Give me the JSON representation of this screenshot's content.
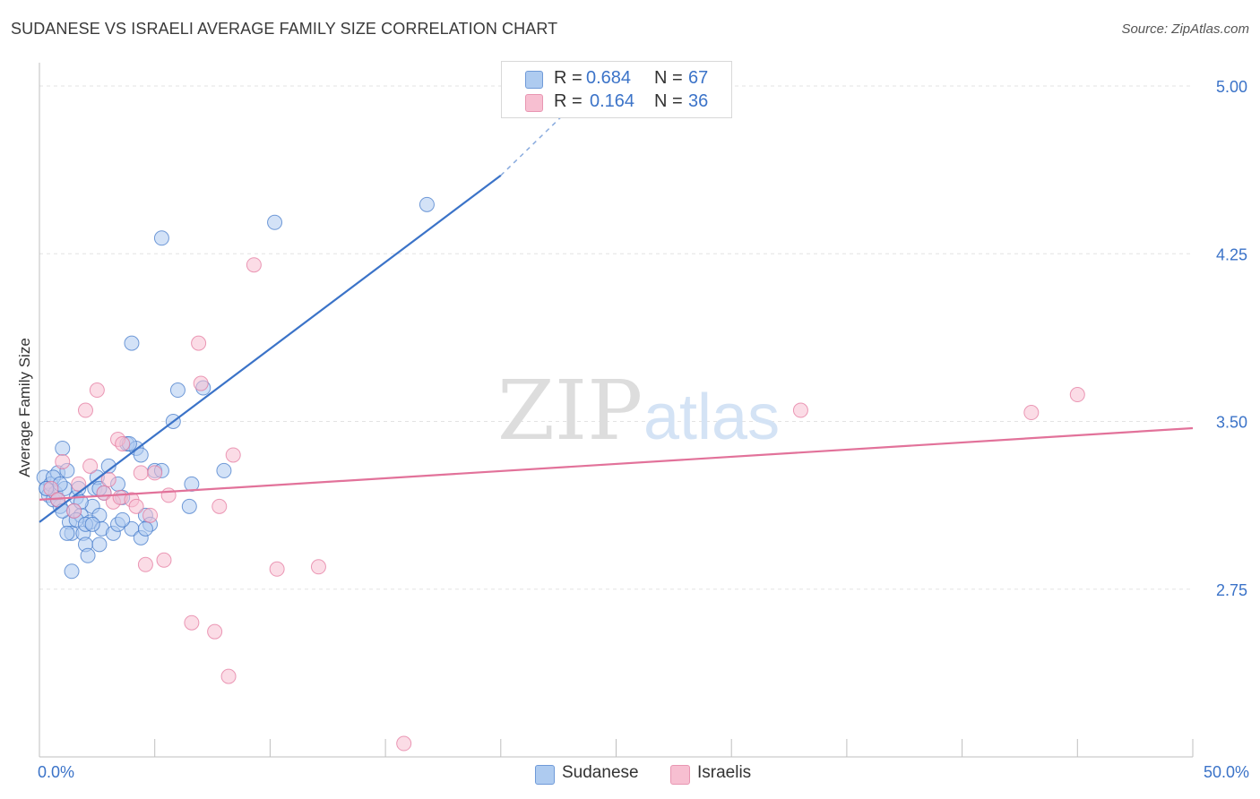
{
  "chart_data": {
    "type": "scatter",
    "title": "SUDANESE VS ISRAELI AVERAGE FAMILY SIZE CORRELATION CHART",
    "source": "Source: ZipAtlas.com",
    "xlabel": "",
    "ylabel": "Average Family Size",
    "xlim": [
      0,
      50
    ],
    "ylim": [
      2.0,
      5.1
    ],
    "x_tick_labels": [
      "0.0%",
      "50.0%"
    ],
    "y_ticks": [
      2.75,
      3.5,
      4.25,
      5.0
    ],
    "y_tick_labels": [
      "2.75",
      "3.50",
      "4.25",
      "5.00"
    ],
    "grid": true,
    "watermark": {
      "part1": "ZIP",
      "part2": "atlas"
    },
    "legend": [
      {
        "r_label": "R =",
        "r_value": "0.684",
        "n_label": "N =",
        "n_value": "67"
      },
      {
        "r_label": "R =",
        "r_value": "0.164",
        "n_label": "N =",
        "n_value": "36"
      }
    ],
    "series": [
      {
        "name": "Sudanese",
        "color": "#3b73c8",
        "fill": "#aecbf0",
        "r": 0.684,
        "n": 67,
        "trendline": {
          "x": [
            0,
            20
          ],
          "y": [
            3.05,
            4.6
          ],
          "dashed_to": [
            23,
            4.9
          ]
        },
        "points": [
          [
            0.2,
            3.25
          ],
          [
            0.3,
            3.2
          ],
          [
            0.4,
            3.17
          ],
          [
            0.5,
            3.22
          ],
          [
            0.6,
            3.15
          ],
          [
            0.7,
            3.18
          ],
          [
            0.8,
            3.27
          ],
          [
            0.9,
            3.12
          ],
          [
            1.0,
            3.38
          ],
          [
            1.1,
            3.2
          ],
          [
            1.2,
            3.28
          ],
          [
            1.3,
            3.05
          ],
          [
            1.4,
            3.0
          ],
          [
            1.5,
            3.1
          ],
          [
            1.6,
            3.16
          ],
          [
            1.7,
            3.2
          ],
          [
            1.8,
            3.08
          ],
          [
            1.9,
            3.0
          ],
          [
            2.0,
            2.95
          ],
          [
            2.1,
            2.9
          ],
          [
            2.2,
            3.05
          ],
          [
            2.3,
            3.12
          ],
          [
            2.4,
            3.2
          ],
          [
            2.5,
            3.25
          ],
          [
            2.6,
            3.08
          ],
          [
            2.7,
            3.02
          ],
          [
            2.8,
            3.18
          ],
          [
            3.0,
            3.3
          ],
          [
            3.2,
            3.0
          ],
          [
            3.4,
            3.22
          ],
          [
            3.6,
            3.16
          ],
          [
            3.8,
            3.4
          ],
          [
            4.0,
            3.02
          ],
          [
            4.2,
            3.38
          ],
          [
            4.4,
            3.35
          ],
          [
            4.6,
            3.08
          ],
          [
            4.8,
            3.04
          ],
          [
            5.0,
            3.28
          ],
          [
            0.6,
            3.25
          ],
          [
            0.9,
            3.22
          ],
          [
            1.2,
            3.0
          ],
          [
            1.4,
            2.83
          ],
          [
            1.6,
            3.06
          ],
          [
            1.8,
            3.14
          ],
          [
            2.0,
            3.04
          ],
          [
            2.3,
            3.04
          ],
          [
            2.6,
            3.2
          ],
          [
            3.4,
            3.04
          ],
          [
            3.6,
            3.06
          ],
          [
            4.4,
            2.98
          ],
          [
            4.6,
            3.02
          ],
          [
            5.3,
            3.28
          ],
          [
            5.8,
            3.5
          ],
          [
            6.0,
            3.64
          ],
          [
            6.5,
            3.12
          ],
          [
            6.6,
            3.22
          ],
          [
            7.1,
            3.65
          ],
          [
            8.0,
            3.28
          ],
          [
            3.9,
            3.4
          ],
          [
            4.0,
            3.85
          ],
          [
            5.3,
            4.32
          ],
          [
            10.2,
            4.39
          ],
          [
            16.8,
            4.47
          ],
          [
            0.3,
            3.2
          ],
          [
            0.8,
            3.15
          ],
          [
            2.6,
            2.95
          ],
          [
            1.0,
            3.1
          ]
        ]
      },
      {
        "name": "Israelis",
        "color": "#e2729a",
        "fill": "#f7bfd1",
        "r": 0.164,
        "n": 36,
        "trendline": {
          "x": [
            0,
            50
          ],
          "y": [
            3.15,
            3.47
          ]
        },
        "points": [
          [
            0.5,
            3.2
          ],
          [
            0.8,
            3.15
          ],
          [
            1.0,
            3.32
          ],
          [
            1.5,
            3.1
          ],
          [
            1.7,
            3.22
          ],
          [
            2.0,
            3.55
          ],
          [
            2.2,
            3.3
          ],
          [
            2.5,
            3.64
          ],
          [
            2.8,
            3.18
          ],
          [
            3.0,
            3.24
          ],
          [
            3.2,
            3.14
          ],
          [
            3.4,
            3.42
          ],
          [
            3.5,
            3.16
          ],
          [
            3.6,
            3.4
          ],
          [
            4.0,
            3.15
          ],
          [
            4.2,
            3.12
          ],
          [
            4.4,
            3.27
          ],
          [
            4.6,
            2.86
          ],
          [
            4.8,
            3.08
          ],
          [
            5.0,
            3.27
          ],
          [
            5.4,
            2.88
          ],
          [
            5.6,
            3.17
          ],
          [
            6.6,
            2.6
          ],
          [
            6.9,
            3.85
          ],
          [
            7.0,
            3.67
          ],
          [
            7.6,
            2.56
          ],
          [
            7.8,
            3.12
          ],
          [
            8.2,
            2.36
          ],
          [
            8.4,
            3.35
          ],
          [
            9.3,
            4.2
          ],
          [
            10.3,
            2.84
          ],
          [
            12.1,
            2.85
          ],
          [
            15.8,
            2.06
          ],
          [
            33.0,
            3.55
          ],
          [
            43.0,
            3.54
          ],
          [
            45.0,
            3.62
          ]
        ]
      }
    ]
  }
}
